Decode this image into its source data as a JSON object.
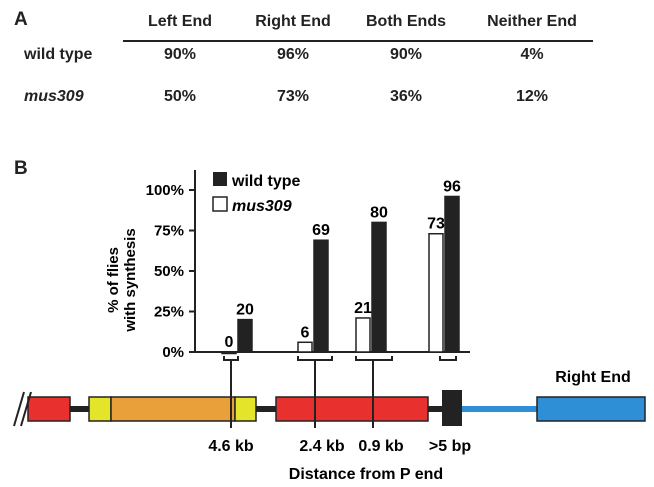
{
  "panel_a": {
    "label": "A",
    "columns": [
      "Left End",
      "Right End",
      "Both Ends",
      "Neither End"
    ],
    "rows": [
      {
        "label": "wild type",
        "values": [
          "90%",
          "96%",
          "90%",
          "4%"
        ]
      },
      {
        "label": "mus309",
        "values": [
          "50%",
          "73%",
          "36%",
          "12%"
        ]
      }
    ]
  },
  "panel_b": {
    "label": "B",
    "ylabel_line1": "% of flies",
    "ylabel_line2": "with synthesis",
    "diagram": {
      "break_mark": "//",
      "right_end_label": "Right End",
      "xlabel": "Distance from P end",
      "site_labels": [
        "4.6 kb",
        "2.4 kb",
        "0.9 kb",
        ">5 bp"
      ],
      "colors": {
        "red": "#e8312f",
        "orange": "#e9a03a",
        "yellow": "#e4e52b",
        "blue": "#2f8fd6",
        "black": "#222222"
      }
    }
  },
  "chart_data": {
    "type": "bar",
    "categories": [
      "4.6 kb",
      "2.4 kb",
      "0.9 kb",
      ">5 bp"
    ],
    "series": [
      {
        "name": "mus309",
        "values": [
          0,
          6,
          21,
          73
        ],
        "color": "#ffffff"
      },
      {
        "name": "wild type",
        "values": [
          20,
          69,
          80,
          96
        ],
        "color": "#222222"
      }
    ],
    "value_labels": {
      "mus309": [
        "0",
        "6",
        "21",
        "73"
      ],
      "wild type": [
        "20",
        "69",
        "80",
        "96"
      ]
    },
    "yticks": [
      "0%",
      "25%",
      "50%",
      "75%",
      "100%"
    ],
    "ylim": [
      0,
      100
    ],
    "legend": "top-left"
  }
}
